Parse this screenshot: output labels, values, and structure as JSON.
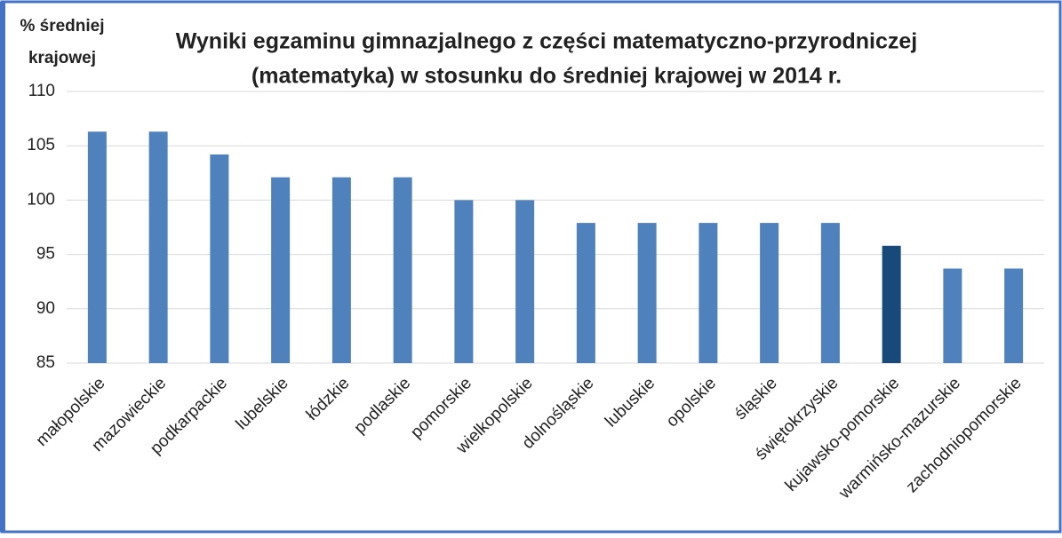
{
  "chart_data": {
    "type": "bar",
    "title": [
      "Wyniki egzaminu gimnazjalnego z części matematyczno-przyrodniczej",
      "(matematyka) w stosunku do średniej krajowej w 2014 r."
    ],
    "ylabel": [
      "% średniej",
      "krajowej"
    ],
    "categories": [
      "małopolskie",
      "mazowieckie",
      "podkarpackie",
      "lubelskie",
      "łódzkie",
      "podlaskie",
      "pomorskie",
      "wielkopolskie",
      "dolnośląskie",
      "lubuskie",
      "opolskie",
      "śląskie",
      "świętokrzyskie",
      "kujawsko-pomorskie",
      "warmińsko-mazurskie",
      "zachodniopomorskie"
    ],
    "values": [
      106.3,
      106.3,
      104.2,
      102.1,
      102.1,
      102.1,
      100,
      100,
      97.9,
      97.9,
      97.9,
      97.9,
      97.9,
      95.8,
      93.7,
      93.7
    ],
    "colors": [
      "#4f81bd",
      "#4f81bd",
      "#4f81bd",
      "#4f81bd",
      "#4f81bd",
      "#4f81bd",
      "#4f81bd",
      "#4f81bd",
      "#4f81bd",
      "#4f81bd",
      "#4f81bd",
      "#4f81bd",
      "#4f81bd",
      "#17497a",
      "#4f81bd",
      "#4f81bd"
    ],
    "ylim": [
      85,
      110
    ],
    "yticks": [
      85,
      90,
      95,
      100,
      105,
      110
    ],
    "grid": true
  }
}
